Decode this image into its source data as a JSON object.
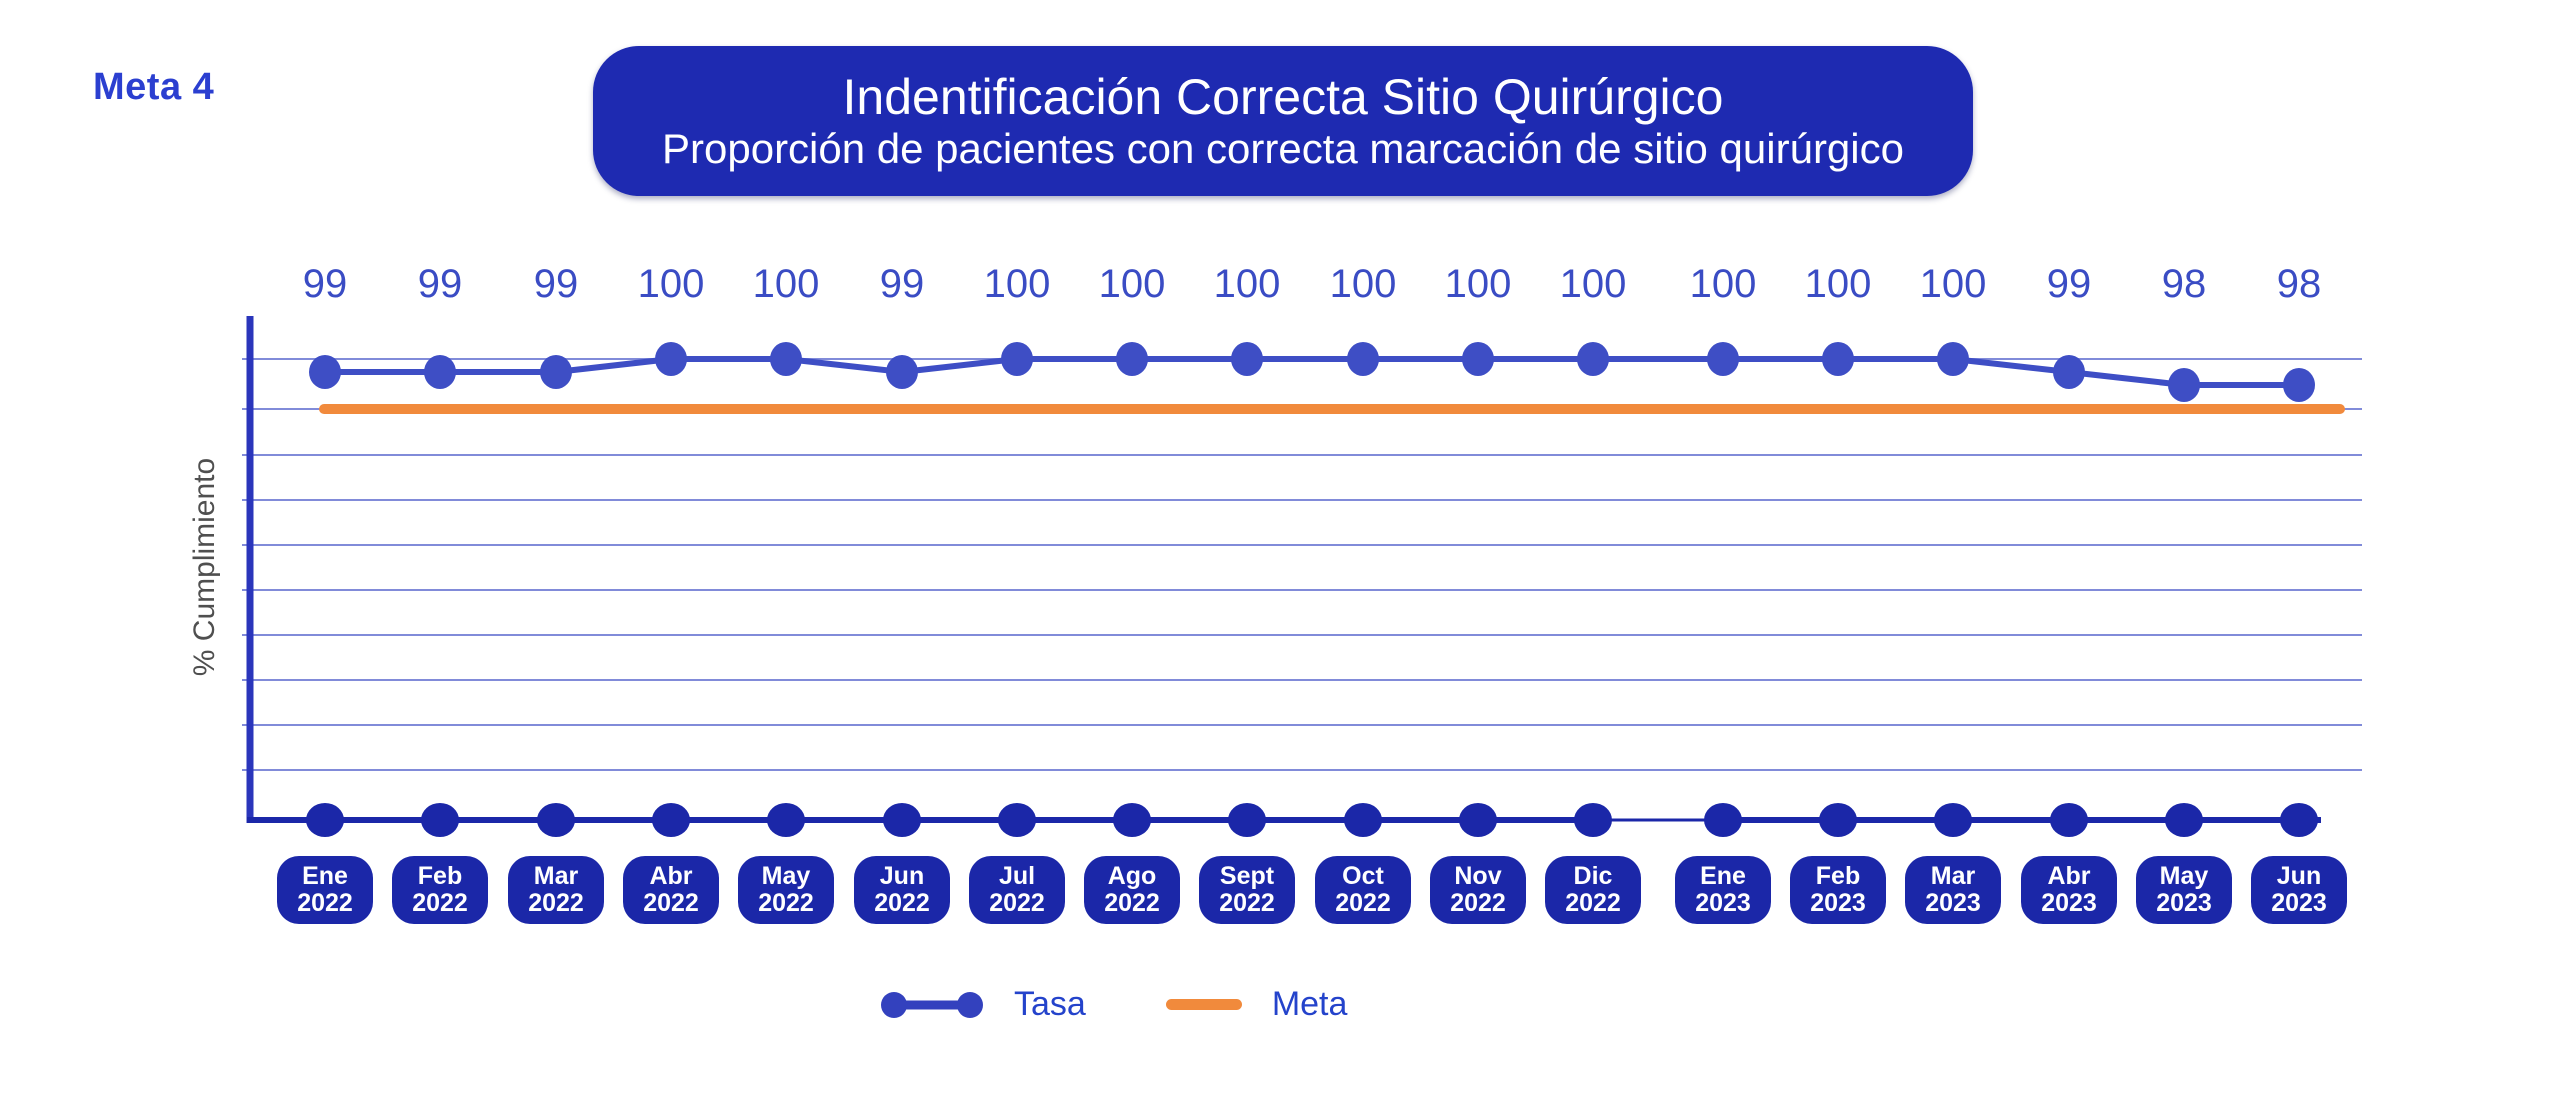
{
  "meta_label": "Meta 4",
  "banner": {
    "title": "Indentificación Correcta Sitio Quirúrgico",
    "subtitle": "Proporción de pacientes con correcta marcación de sitio quirúrgico"
  },
  "chart_data": {
    "type": "line",
    "title": "Indentificación Correcta Sitio Quirúrgico",
    "subtitle": "Proporción de pacientes con correcta marcación de sitio quirúrgico",
    "ylabel": "% Cumplimiento",
    "xlabel": "",
    "y_tick_labels_shown": false,
    "data_labels_shown": true,
    "grid": true,
    "legend_position": "bottom",
    "categories": [
      {
        "month": "Ene",
        "year": "2022"
      },
      {
        "month": "Feb",
        "year": "2022"
      },
      {
        "month": "Mar",
        "year": "2022"
      },
      {
        "month": "Abr",
        "year": "2022"
      },
      {
        "month": "May",
        "year": "2022"
      },
      {
        "month": "Jun",
        "year": "2022"
      },
      {
        "month": "Jul",
        "year": "2022"
      },
      {
        "month": "Ago",
        "year": "2022"
      },
      {
        "month": "Sept",
        "year": "2022"
      },
      {
        "month": "Oct",
        "year": "2022"
      },
      {
        "month": "Nov",
        "year": "2022"
      },
      {
        "month": "Dic",
        "year": "2022"
      },
      {
        "month": "Ene",
        "year": "2023"
      },
      {
        "month": "Feb",
        "year": "2023"
      },
      {
        "month": "Mar",
        "year": "2023"
      },
      {
        "month": "Abr",
        "year": "2023"
      },
      {
        "month": "May",
        "year": "2023"
      },
      {
        "month": "Jun",
        "year": "2023"
      }
    ],
    "series": [
      {
        "name": "Tasa",
        "type": "line-with-points",
        "values": [
          99,
          99,
          99,
          100,
          100,
          99,
          100,
          100,
          100,
          100,
          100,
          100,
          100,
          100,
          100,
          99,
          98,
          98
        ],
        "color": "#3E4EC5"
      },
      {
        "name": "Meta",
        "type": "horizontal-line",
        "estimated_value": 95,
        "color": "#F18A3C"
      }
    ]
  },
  "legend": {
    "items": [
      {
        "label": "Tasa",
        "marker": "line-with-dots",
        "color": "#3E4EC5"
      },
      {
        "label": "Meta",
        "marker": "line",
        "color": "#F18A3C"
      }
    ]
  },
  "colors": {
    "background": "#FFFFFF",
    "banner_bg": "#1E2AB1",
    "banner_text": "#FFFFFF",
    "pill_bg": "#1B27A8",
    "pill_text": "#FFFFFF",
    "series_blue": "#3E4EC5",
    "meta_orange": "#F18A3C",
    "data_label_blue": "#3A4CC4",
    "axis_blue": "#2A35BB",
    "gridline_blue": "#3E4EC5",
    "meta_label_blue": "#2B3FD0",
    "legend_text_blue": "#2443CB",
    "ylabel_gray": "#4F4F4F"
  }
}
